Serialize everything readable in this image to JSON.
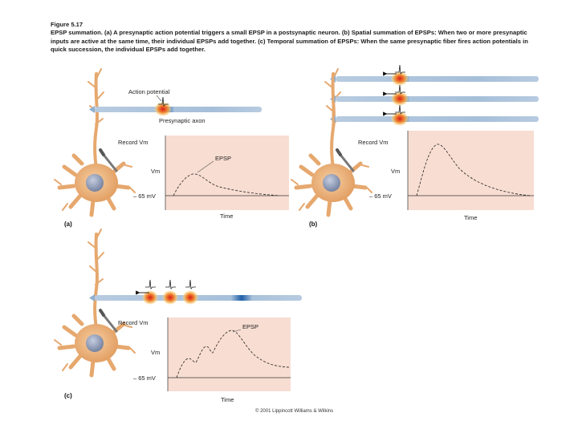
{
  "caption": {
    "figure_label": "Figure 5.17",
    "text": "EPSP summation. (a) A presynaptic action potential triggers a small EPSP in a postsynaptic neuron. (b) Spatial summation of EPSPs: When two or more presynaptic inputs are active at the same time, their individual EPSPs add together. (c) Temporal summation of EPSPs: When the same presynaptic fiber fires action potentials in quick succession, the individual EPSPs add together."
  },
  "panel_a": {
    "letter": "(a)",
    "action_potential_label": "Action potential",
    "axon_label": "Presynaptic axon",
    "record_label": "Record Vm",
    "vm_label": "Vm",
    "rest_label": "– 65 mV",
    "epsp_label": "EPSP",
    "time_label": "Time"
  },
  "panel_b": {
    "letter": "(b)",
    "record_label": "Record Vm",
    "vm_label": "Vm",
    "rest_label": "– 65 mV",
    "time_label": "Time"
  },
  "panel_c": {
    "letter": "(c)",
    "record_label": "Record Vm",
    "vm_label": "Vm",
    "rest_label": "– 65 mV",
    "epsp_label": "EPSP",
    "time_label": "Time"
  },
  "copyright": "© 2001 Lippincott Williams & Wilkins",
  "colors": {
    "plot_bg": "#f8ddd2",
    "axon": "#a9c2dc",
    "axon_dark": "#2e6bb0",
    "neuron": "#eab27e",
    "nucleus": "#8e9bb5",
    "hotspot": "#e8302a"
  }
}
